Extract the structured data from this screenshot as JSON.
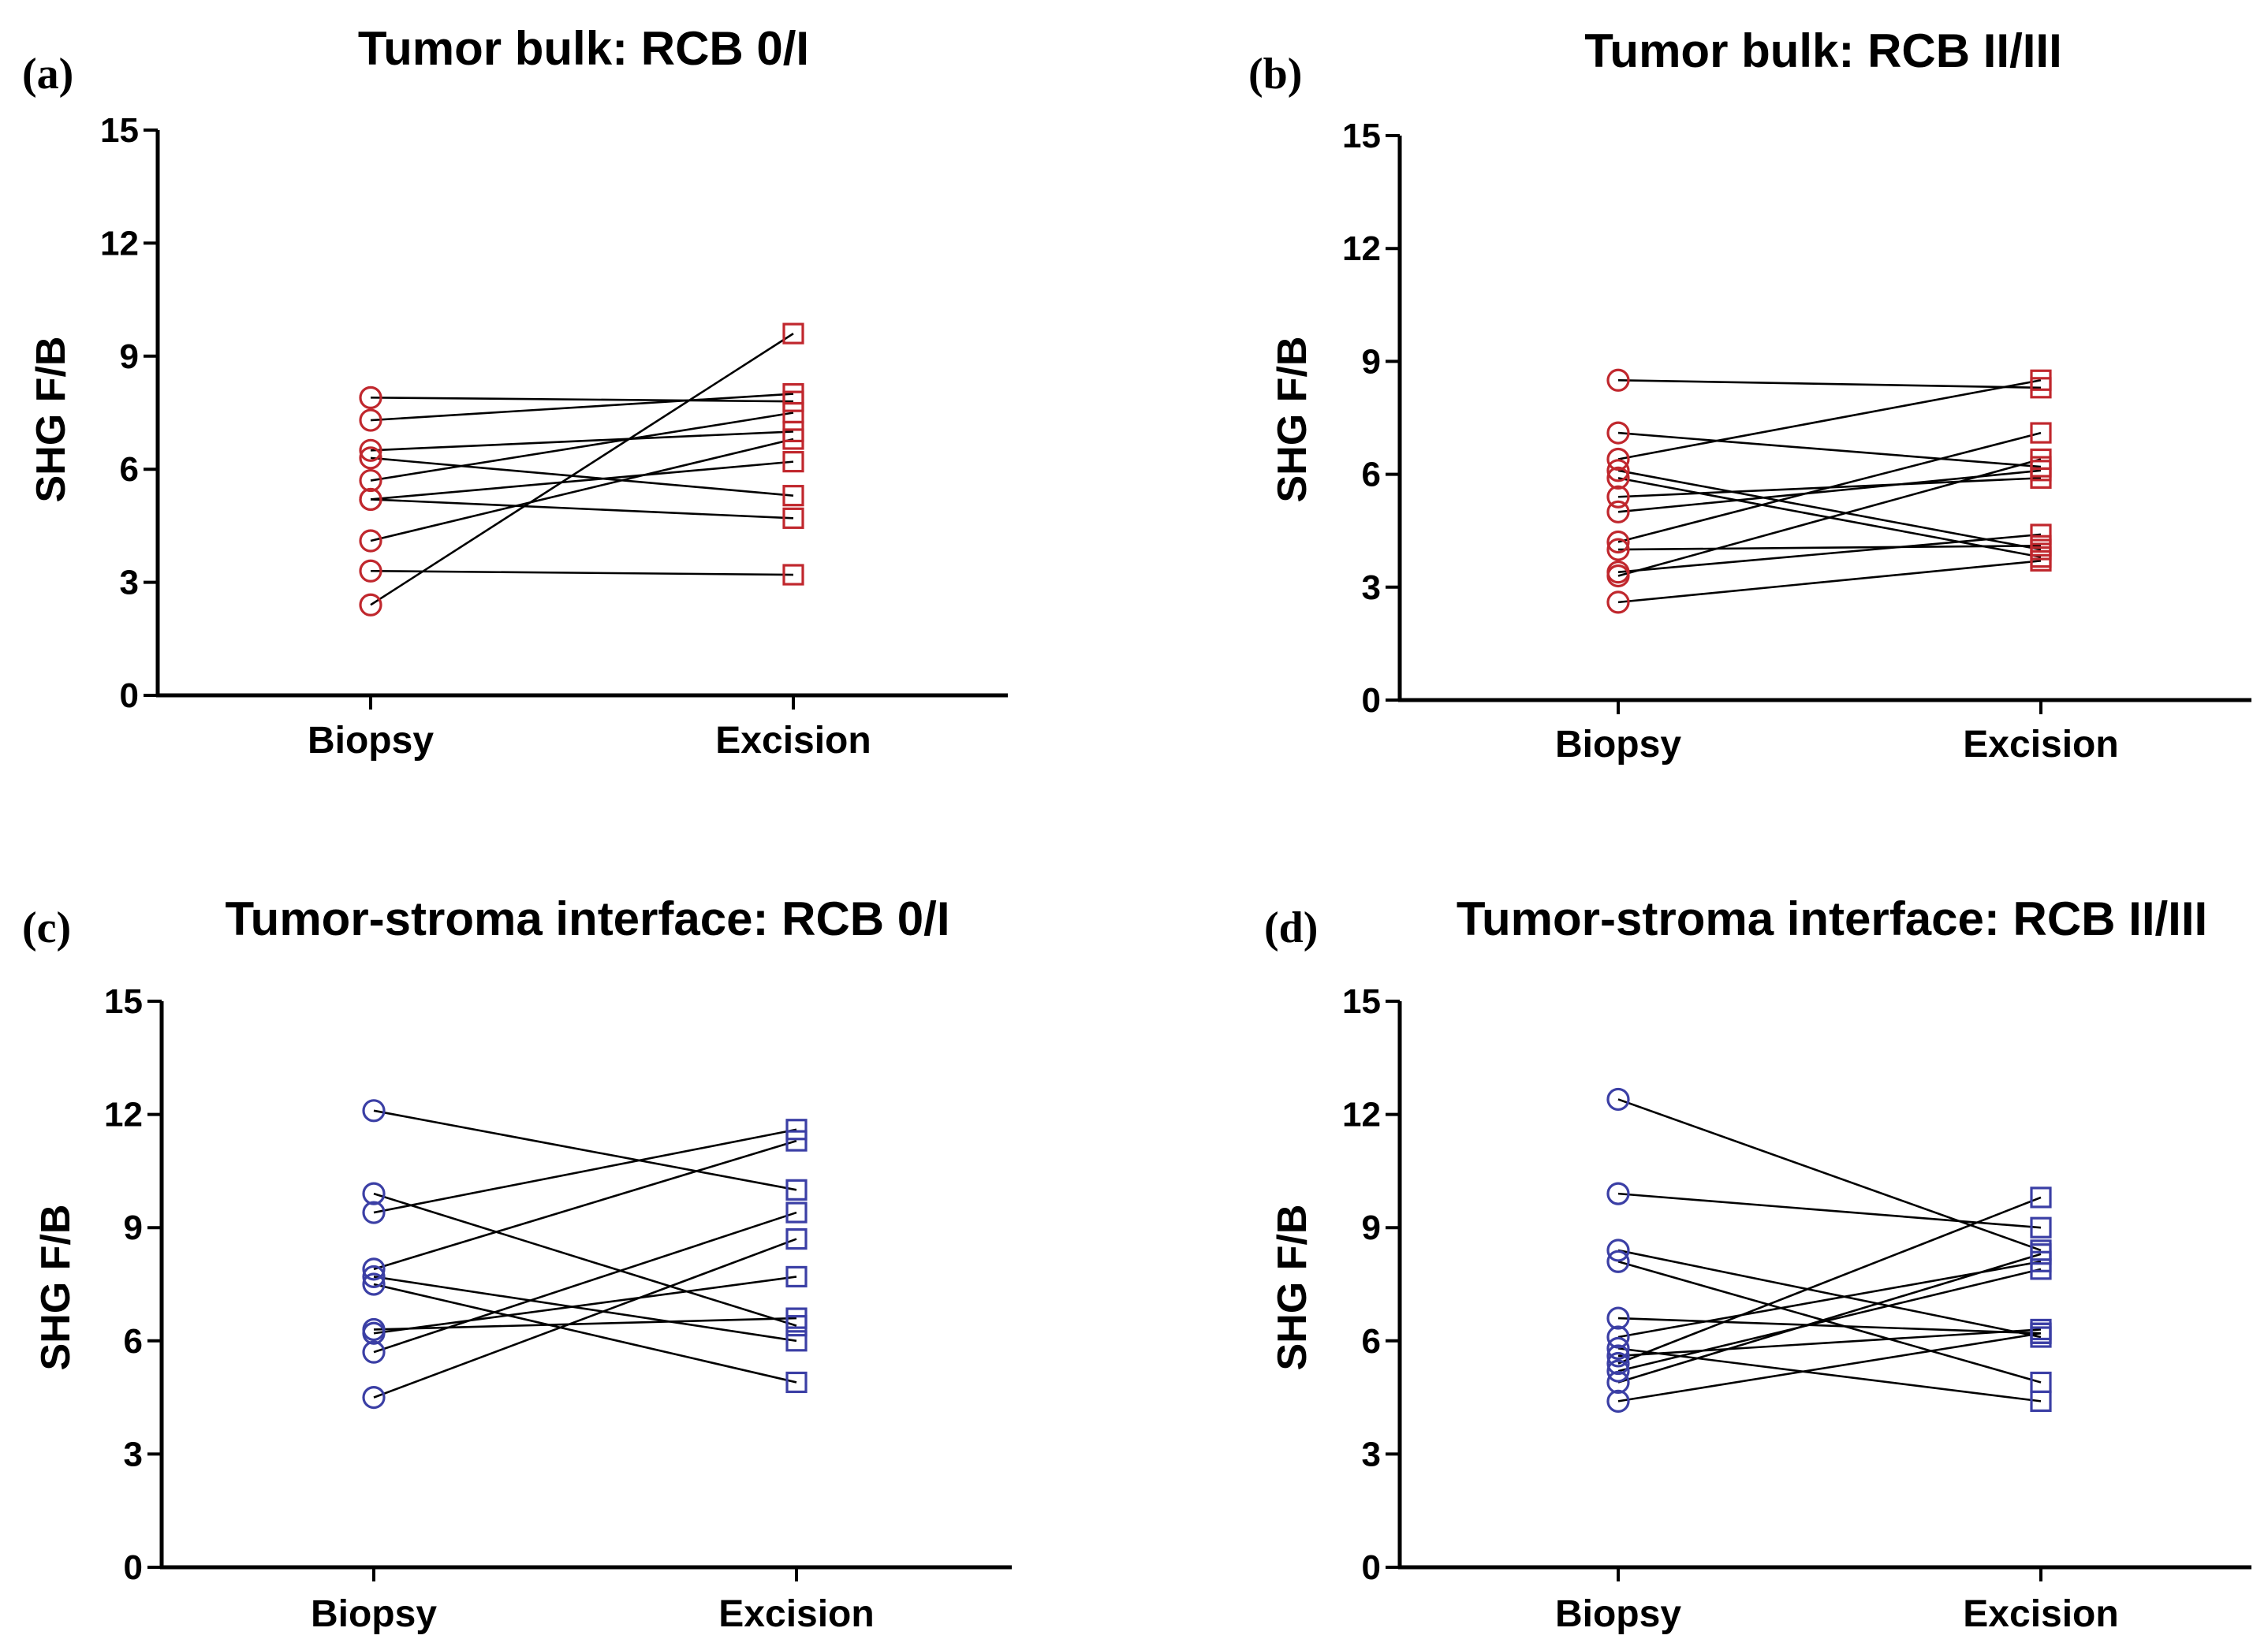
{
  "figure": {
    "marker_colors": {
      "red": "#c0272d",
      "blue": "#3b3fa5"
    }
  },
  "chart_data": [
    {
      "type": "line",
      "panel": "(a)",
      "title": "Tumor bulk: RCB 0/I",
      "xlabel": "",
      "ylabel": "SHG F/B",
      "categories": [
        "Biopsy",
        "Excision"
      ],
      "ylim": [
        0,
        15
      ],
      "yticks": [
        0,
        3,
        6,
        9,
        12,
        15
      ],
      "color": "#c0272d",
      "markers": [
        "circle",
        "square"
      ],
      "pairs": [
        [
          7.9,
          7.8
        ],
        [
          7.3,
          8.0
        ],
        [
          6.5,
          7.0
        ],
        [
          6.3,
          5.3
        ],
        [
          5.7,
          7.5
        ],
        [
          5.2,
          6.2
        ],
        [
          5.2,
          4.7
        ],
        [
          4.1,
          6.8
        ],
        [
          3.3,
          3.2
        ],
        [
          2.4,
          9.6
        ]
      ]
    },
    {
      "type": "line",
      "panel": "(b)",
      "title": "Tumor bulk: RCB II/III",
      "xlabel": "",
      "ylabel": "SHG F/B",
      "categories": [
        "Biopsy",
        "Excision"
      ],
      "ylim": [
        0,
        15
      ],
      "yticks": [
        0,
        3,
        6,
        9,
        12,
        15
      ],
      "color": "#c0272d",
      "markers": [
        "circle",
        "square"
      ],
      "pairs": [
        [
          8.5,
          8.3
        ],
        [
          7.1,
          6.2
        ],
        [
          6.4,
          8.5
        ],
        [
          6.1,
          4.0
        ],
        [
          5.9,
          3.8
        ],
        [
          5.4,
          5.9
        ],
        [
          5.0,
          6.1
        ],
        [
          4.2,
          7.1
        ],
        [
          4.0,
          4.1
        ],
        [
          3.4,
          4.4
        ],
        [
          3.3,
          6.4
        ],
        [
          2.6,
          3.7
        ]
      ]
    },
    {
      "type": "line",
      "panel": "(c)",
      "title": "Tumor-stroma interface: RCB 0/I",
      "xlabel": "",
      "ylabel": "SHG F/B",
      "categories": [
        "Biopsy",
        "Excision"
      ],
      "ylim": [
        0,
        15
      ],
      "yticks": [
        0,
        3,
        6,
        9,
        12,
        15
      ],
      "color": "#3b3fa5",
      "markers": [
        "circle",
        "square"
      ],
      "pairs": [
        [
          12.1,
          10.0
        ],
        [
          9.9,
          6.4
        ],
        [
          9.4,
          11.6
        ],
        [
          7.9,
          11.3
        ],
        [
          7.7,
          6.0
        ],
        [
          7.5,
          4.9
        ],
        [
          6.3,
          6.6
        ],
        [
          6.2,
          7.7
        ],
        [
          5.7,
          9.4
        ],
        [
          4.5,
          8.7
        ]
      ]
    },
    {
      "type": "line",
      "panel": "(d)",
      "title": "Tumor-stroma interface: RCB II/III",
      "xlabel": "",
      "ylabel": "SHG F/B",
      "categories": [
        "Biopsy",
        "Excision"
      ],
      "ylim": [
        0,
        15
      ],
      "yticks": [
        0,
        3,
        6,
        9,
        12,
        15
      ],
      "color": "#3b3fa5",
      "markers": [
        "circle",
        "square"
      ],
      "pairs": [
        [
          12.4,
          8.4
        ],
        [
          9.9,
          9.0
        ],
        [
          8.4,
          6.1
        ],
        [
          8.1,
          4.9
        ],
        [
          6.6,
          6.2
        ],
        [
          6.1,
          8.1
        ],
        [
          5.8,
          4.4
        ],
        [
          5.6,
          6.3
        ],
        [
          5.4,
          9.8
        ],
        [
          5.2,
          7.9
        ],
        [
          4.9,
          8.3
        ],
        [
          4.4,
          6.2
        ]
      ]
    }
  ]
}
